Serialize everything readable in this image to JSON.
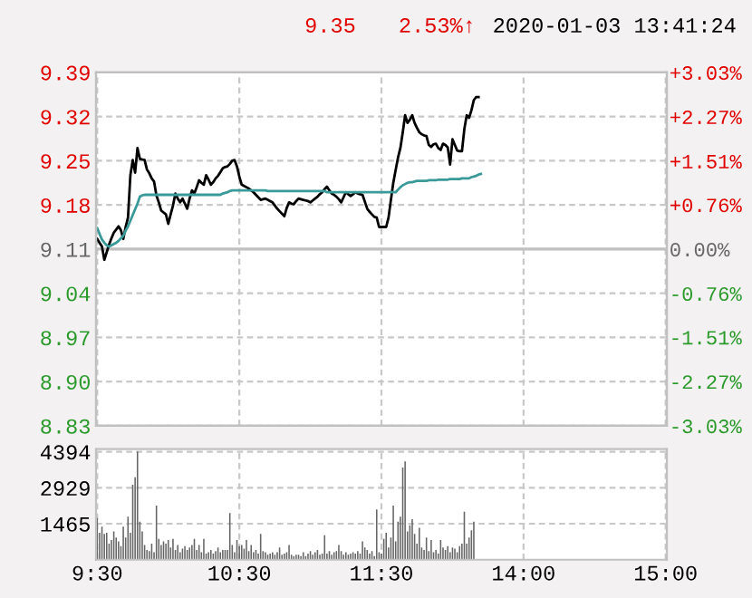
{
  "chart_data": [
    {
      "type": "line",
      "annotations": [
        "9.35",
        "2.53%↑",
        "2020-01-03 13:41:24"
      ],
      "categories": [
        null,
        null,
        null,
        null,
        null,
        null,
        null,
        null,
        null,
        null,
        null,
        null,
        null,
        null,
        null,
        null,
        null,
        null,
        null,
        null,
        null,
        null,
        null,
        null,
        null,
        null,
        null,
        null,
        null,
        null,
        null,
        null,
        null,
        null,
        null,
        null,
        null,
        null,
        null,
        null,
        null,
        null,
        null,
        null,
        null,
        null,
        null,
        null,
        null,
        null,
        null,
        null,
        null,
        null,
        null,
        null,
        null,
        null,
        null,
        null,
        null,
        null,
        null,
        null,
        null,
        null,
        null,
        null,
        null,
        null,
        null,
        null,
        null,
        null,
        null,
        null,
        null,
        null,
        null,
        null,
        null,
        null,
        null,
        null,
        null,
        null,
        null,
        null,
        null,
        null,
        null,
        null,
        null,
        null,
        null,
        null,
        null,
        null,
        null,
        null,
        null,
        null,
        null,
        null,
        null,
        null,
        null,
        null,
        null,
        null,
        null,
        null,
        null,
        null,
        null,
        null,
        null,
        null,
        null,
        null,
        null,
        null,
        null,
        null,
        null,
        null,
        null,
        null,
        null,
        null,
        null,
        null,
        null,
        null,
        null,
        null,
        null,
        null,
        null,
        null,
        null,
        null,
        null,
        null,
        null,
        null,
        null,
        null,
        null,
        null,
        null,
        null,
        null,
        null,
        null,
        null,
        null,
        null,
        null,
        null,
        null,
        null,
        null,
        null,
        null,
        null,
        null,
        null,
        null,
        null,
        null,
        null,
        null,
        null,
        null,
        null,
        null,
        null,
        null,
        null,
        null,
        null,
        null,
        null,
        null,
        null,
        null,
        null,
        null,
        null,
        null,
        null,
        null,
        null,
        null,
        null,
        null,
        null,
        null,
        null,
        null,
        null,
        null,
        null,
        null,
        null,
        null,
        null,
        null,
        null,
        null,
        null,
        null,
        null,
        null,
        null,
        null,
        null,
        null,
        null,
        null,
        null,
        null,
        null,
        null,
        null,
        null,
        null,
        null,
        null,
        null,
        null,
        null,
        null,
        null,
        null,
        null,
        null,
        null,
        null,
        null
      ],
      "ylim": [
        8.83,
        9.39
      ],
      "yticks": [
        {
          "value": 8.83,
          "label": "8.83"
        },
        {
          "value": 8.9,
          "label": "8.90"
        },
        {
          "value": 8.97,
          "label": "8.97"
        },
        {
          "value": 9.04,
          "label": "9.04"
        },
        {
          "value": 9.11,
          "label": "9.11"
        },
        {
          "value": 9.18,
          "label": "9.18"
        },
        {
          "value": 9.25,
          "label": "9.25"
        },
        {
          "value": 9.32,
          "label": "9.32"
        },
        {
          "value": 9.39,
          "label": "9.39"
        }
      ],
      "y2lim": [
        -3.03,
        3.03
      ],
      "y2ticks": [
        {
          "value": -3.03,
          "label": "-3.03%"
        },
        {
          "value": -2.27,
          "label": "-2.27%"
        },
        {
          "value": -1.51,
          "label": "-1.51%"
        },
        {
          "value": -0.76,
          "label": "-0.76%"
        },
        {
          "value": 0,
          "label": "0.00%"
        },
        {
          "value": 0.76,
          "label": "+0.76%"
        },
        {
          "value": 1.51,
          "label": "+1.51%"
        },
        {
          "value": 2.27,
          "label": "+2.27%"
        },
        {
          "value": 3.03,
          "label": "+3.03%"
        }
      ],
      "tick_labels": "y",
      "grid": true,
      "ref_lines": [
        {
          "axis": "y",
          "value": 9.11,
          "color": "#c0c0c0",
          "line_style": "solid"
        }
      ],
      "series": [
        {
          "color": "#000000",
          "values": [
            9.126,
            9.12,
            9.114,
            9.093,
            9.105,
            9.117,
            9.127,
            9.136,
            9.141,
            9.146,
            9.14,
            9.126,
            9.145,
            9.16,
            9.227,
            9.251,
            9.231,
            9.27,
            9.253,
            9.252,
            9.251,
            9.236,
            9.23,
            9.222,
            9.217,
            9.195,
            9.184,
            9.171,
            9.168,
            9.165,
            9.15,
            9.165,
            9.179,
            9.198,
            9.19,
            9.184,
            9.19,
            9.182,
            9.174,
            9.19,
            9.203,
            9.198,
            9.208,
            9.219,
            9.215,
            9.212,
            9.227,
            9.22,
            9.212,
            9.216,
            9.222,
            9.226,
            9.232,
            9.238,
            9.24,
            9.241,
            9.245,
            9.25,
            9.251,
            9.241,
            9.225,
            9.212,
            9.21,
            9.208,
            9.206,
            9.203,
            9.2,
            9.196,
            9.192,
            9.188,
            9.189,
            9.19,
            9.188,
            9.186,
            9.184,
            9.179,
            9.174,
            9.17,
            9.166,
            9.162,
            9.175,
            9.184,
            9.182,
            9.181,
            9.186,
            9.19,
            9.189,
            9.188,
            9.187,
            9.186,
            9.184,
            9.187,
            9.19,
            9.193,
            9.197,
            9.2,
            9.205,
            9.209,
            9.203,
            9.198,
            9.196,
            9.193,
            9.189,
            9.184,
            9.192,
            9.2,
            9.197,
            9.194,
            9.197,
            9.2,
            9.198,
            9.197,
            9.196,
            9.185,
            9.174,
            9.169,
            9.165,
            9.161,
            9.16,
            9.145,
            9.145,
            9.145,
            9.145,
            9.16,
            9.188,
            9.215,
            9.235,
            9.255,
            9.27,
            9.295,
            9.322,
            9.31,
            9.315,
            9.322,
            9.31,
            9.302,
            9.295,
            9.292,
            9.29,
            9.289,
            9.275,
            9.272,
            9.276,
            9.277,
            9.27,
            9.267,
            9.277,
            9.275,
            9.271,
            9.244,
            9.284,
            9.275,
            9.266,
            9.265,
            9.265,
            9.3,
            9.322,
            9.318,
            9.33,
            9.346,
            9.351,
            9.351,
            null,
            null,
            null,
            null,
            null,
            null,
            null,
            null,
            null,
            null,
            null,
            null,
            null,
            null,
            null,
            null,
            null,
            null,
            null,
            null,
            null,
            null,
            null,
            null,
            null,
            null,
            null,
            null,
            null,
            null,
            null,
            null,
            null,
            null,
            null,
            null,
            null,
            null,
            null,
            null,
            null,
            null,
            null,
            null,
            null,
            null,
            null,
            null,
            null,
            null,
            null,
            null,
            null,
            null,
            null,
            null,
            null,
            null,
            null,
            null,
            null,
            null,
            null,
            null,
            null,
            null,
            null,
            null,
            null,
            null,
            null,
            null,
            null,
            null,
            null,
            null,
            null,
            null,
            null
          ]
        },
        {
          "color": "#3a9a9a",
          "values": [
            9.143,
            9.134,
            9.125,
            9.12,
            9.116,
            9.114,
            9.116,
            9.118,
            9.12,
            9.123,
            9.127,
            9.131,
            9.139,
            9.146,
            9.155,
            9.164,
            9.173,
            9.182,
            9.193,
            9.195,
            9.196,
            9.196,
            9.196,
            9.196,
            9.196,
            9.196,
            9.196,
            9.196,
            9.196,
            9.196,
            9.196,
            9.196,
            9.196,
            9.196,
            9.196,
            9.196,
            9.196,
            9.196,
            9.196,
            9.196,
            9.196,
            9.196,
            9.196,
            9.196,
            9.196,
            9.196,
            9.196,
            9.196,
            9.196,
            9.196,
            9.196,
            9.196,
            9.196,
            9.198,
            9.199,
            9.2,
            9.202,
            9.203,
            9.203,
            9.203,
            9.203,
            9.203,
            9.203,
            9.203,
            9.203,
            9.203,
            9.203,
            9.203,
            9.203,
            9.203,
            9.203,
            9.203,
            9.202,
            9.202,
            9.202,
            9.202,
            9.202,
            9.202,
            9.202,
            9.202,
            9.202,
            9.202,
            9.202,
            9.202,
            9.202,
            9.202,
            9.202,
            9.202,
            9.202,
            9.202,
            9.202,
            9.202,
            9.202,
            9.202,
            9.202,
            9.202,
            9.202,
            9.2,
            9.2,
            9.2,
            9.2,
            9.2,
            9.2,
            9.2,
            9.2,
            9.2,
            9.2,
            9.2,
            9.2,
            9.2,
            9.2,
            9.2,
            9.2,
            9.2,
            9.2,
            9.2,
            9.2,
            9.2,
            9.2,
            9.2,
            9.2,
            9.2,
            9.2,
            9.2,
            9.2,
            9.2,
            9.2,
            9.204,
            9.208,
            9.211,
            9.213,
            9.215,
            9.216,
            9.216,
            9.217,
            9.218,
            9.218,
            9.218,
            9.218,
            9.218,
            9.219,
            9.219,
            9.219,
            9.219,
            9.22,
            9.22,
            9.22,
            9.22,
            9.22,
            9.221,
            9.221,
            9.221,
            9.221,
            9.221,
            9.222,
            9.222,
            9.222,
            9.222,
            9.224,
            9.225,
            9.226,
            9.228,
            9.229,
            null,
            null,
            null,
            null,
            null,
            null,
            null,
            null,
            null,
            null,
            null,
            null,
            null,
            null,
            null,
            null,
            null,
            null,
            null,
            null,
            null,
            null,
            null,
            null,
            null,
            null,
            null,
            null,
            null,
            null,
            null,
            null,
            null,
            null,
            null,
            null,
            null,
            null,
            null,
            null,
            null,
            null,
            null,
            null,
            null,
            null,
            null,
            null,
            null,
            null,
            null,
            null,
            null,
            null,
            null,
            null,
            null,
            null,
            null,
            null,
            null,
            null,
            null,
            null,
            null,
            null,
            null,
            null,
            null,
            null,
            null,
            null,
            null,
            null,
            null,
            null,
            null,
            null
          ]
        }
      ]
    },
    {
      "type": "bar",
      "categories": [
        "9:30",
        null,
        null,
        null,
        null,
        null,
        null,
        null,
        null,
        null,
        null,
        null,
        null,
        null,
        null,
        null,
        null,
        null,
        null,
        null,
        null,
        null,
        null,
        null,
        null,
        null,
        null,
        null,
        null,
        null,
        null,
        null,
        null,
        null,
        null,
        null,
        null,
        null,
        null,
        null,
        null,
        null,
        null,
        null,
        null,
        null,
        null,
        null,
        null,
        null,
        null,
        null,
        null,
        null,
        null,
        null,
        null,
        null,
        null,
        null,
        "10:30",
        null,
        null,
        null,
        null,
        null,
        null,
        null,
        null,
        null,
        null,
        null,
        null,
        null,
        null,
        null,
        null,
        null,
        null,
        null,
        null,
        null,
        null,
        null,
        null,
        null,
        null,
        null,
        null,
        null,
        null,
        null,
        null,
        null,
        null,
        null,
        null,
        null,
        null,
        null,
        null,
        null,
        null,
        null,
        null,
        null,
        null,
        null,
        null,
        null,
        null,
        null,
        null,
        null,
        null,
        null,
        null,
        null,
        null,
        null,
        "11:30",
        null,
        null,
        null,
        null,
        null,
        null,
        null,
        null,
        null,
        null,
        null,
        null,
        null,
        null,
        null,
        null,
        null,
        null,
        null,
        null,
        null,
        null,
        null,
        null,
        null,
        null,
        null,
        null,
        null,
        null,
        null,
        null,
        null,
        null,
        null,
        null,
        null,
        null,
        null,
        null,
        null,
        null,
        null,
        null,
        null,
        null,
        null,
        null,
        null,
        null,
        null,
        null,
        null,
        null,
        null,
        null,
        null,
        null,
        null,
        "14:00",
        null,
        null,
        null,
        null,
        null,
        null,
        null,
        null,
        null,
        null,
        null,
        null,
        null,
        null,
        null,
        null,
        null,
        null,
        null,
        null,
        null,
        null,
        null,
        null,
        null,
        null,
        null,
        null,
        null,
        null,
        null,
        null,
        null,
        null,
        null,
        null,
        null,
        null,
        null,
        null,
        null,
        null,
        null,
        null,
        null,
        null,
        null,
        null,
        null,
        null,
        null,
        null,
        null,
        null,
        null,
        null,
        null,
        null,
        null,
        "15:00"
      ],
      "ylim": [
        0,
        4500
      ],
      "yticks": [
        1465,
        2929,
        4394
      ],
      "grid": true,
      "series": [
        {
          "color": "#666666",
          "values": [
            1700,
            1100,
            1350,
            1050,
            1100,
            650,
            800,
            1150,
            900,
            750,
            550,
            1350,
            900,
            1750,
            1100,
            3050,
            3350,
            4400,
            1550,
            1150,
            600,
            400,
            350,
            650,
            300,
            2200,
            850,
            600,
            750,
            650,
            800,
            500,
            850,
            400,
            600,
            300,
            450,
            550,
            400,
            500,
            600,
            850,
            400,
            600,
            300,
            850,
            250,
            300,
            400,
            250,
            350,
            500,
            300,
            400,
            400,
            400,
            1900,
            600,
            300,
            800,
            550,
            600,
            450,
            800,
            350,
            600,
            300,
            400,
            250,
            1050,
            350,
            300,
            200,
            250,
            300,
            200,
            300,
            500,
            200,
            250,
            300,
            600,
            200,
            150,
            200,
            200,
            150,
            300,
            150,
            250,
            350,
            200,
            300,
            400,
            200,
            250,
            1000,
            250,
            350,
            200,
            300,
            350,
            600,
            350,
            200,
            300,
            200,
            250,
            300,
            250,
            350,
            250,
            750,
            500,
            400,
            250,
            350,
            150,
            2050,
            300,
            250,
            850,
            1100,
            500,
            900,
            2200,
            750,
            1550,
            1750,
            3750,
            4000,
            1150,
            1400,
            1650,
            1050,
            650,
            1300,
            500,
            400,
            900,
            350,
            800,
            300,
            400,
            250,
            800,
            500,
            400,
            550,
            300,
            500,
            450,
            300,
            550,
            650,
            1950,
            650,
            900,
            1200,
            1550,
            null,
            null,
            null,
            null,
            null,
            null,
            null,
            null,
            null,
            null,
            null,
            null,
            null,
            null,
            null,
            null,
            null,
            null,
            null,
            null,
            null,
            null,
            null,
            null,
            null,
            null,
            null,
            null,
            null,
            null,
            null,
            null,
            null,
            null,
            null,
            null,
            null,
            null,
            null,
            null,
            null,
            null,
            null,
            null,
            null,
            null,
            null,
            null,
            null,
            null,
            null,
            null,
            null,
            null,
            null,
            null,
            null,
            null,
            null,
            null,
            null,
            null,
            null,
            null,
            null,
            null,
            null,
            null,
            null,
            null,
            null,
            null,
            null,
            null,
            null,
            null,
            null,
            null,
            null,
            null,
            null
          ]
        }
      ]
    }
  ]
}
